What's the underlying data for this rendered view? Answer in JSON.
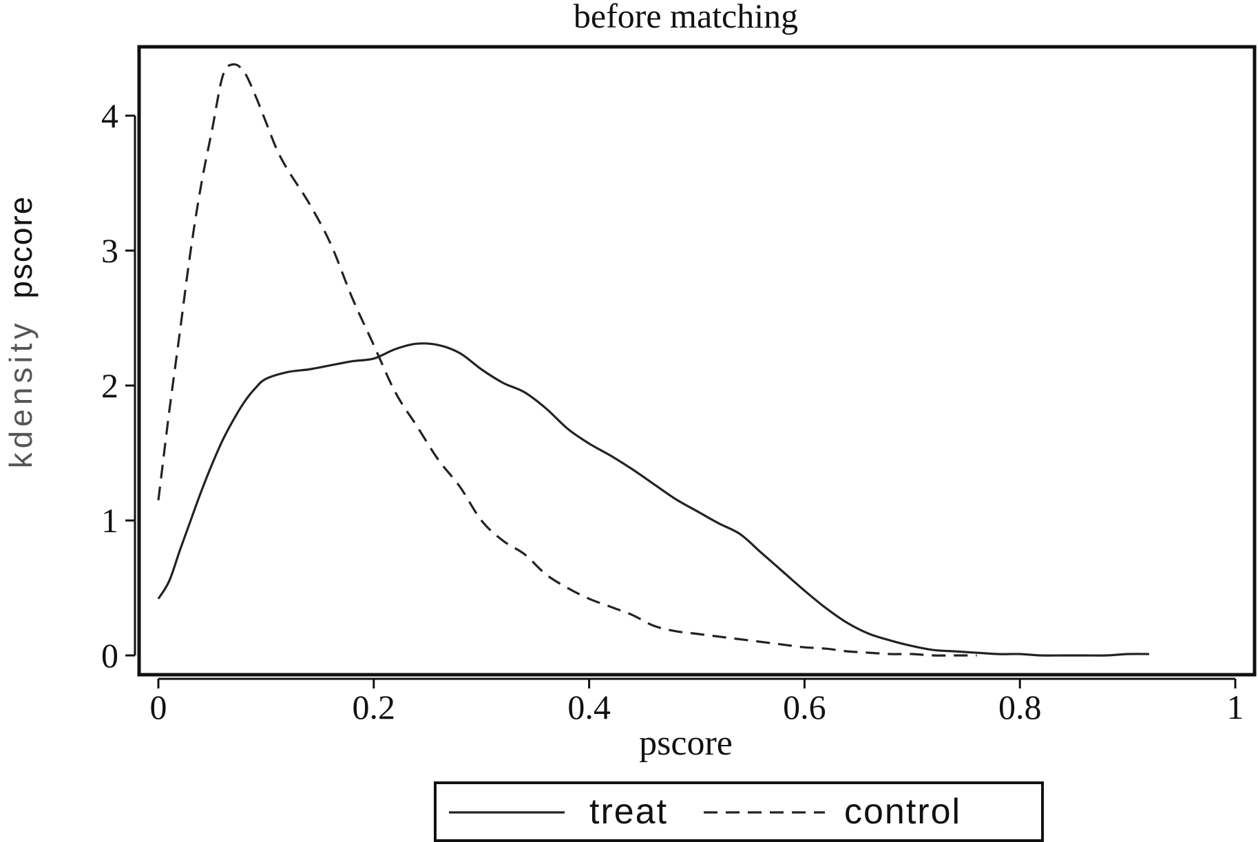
{
  "chart_data": {
    "type": "line",
    "title": "before matching",
    "xlabel": "pscore",
    "ylabel": [
      "kdensity",
      "pscore"
    ],
    "xlim": [
      0,
      1
    ],
    "ylim": [
      0,
      4.4
    ],
    "x_ticks": [
      "0",
      "0.2",
      "0.4",
      "0.6",
      "0.8",
      "1"
    ],
    "y_ticks": [
      "0",
      "1",
      "2",
      "3",
      "4"
    ],
    "grid": false,
    "legend_position": "bottom",
    "series": [
      {
        "name": "treat",
        "style": "solid",
        "color": "#222222",
        "x": [
          0.0,
          0.01,
          0.02,
          0.03,
          0.04,
          0.05,
          0.06,
          0.07,
          0.08,
          0.09,
          0.1,
          0.12,
          0.14,
          0.16,
          0.18,
          0.2,
          0.22,
          0.24,
          0.26,
          0.28,
          0.3,
          0.32,
          0.34,
          0.36,
          0.38,
          0.4,
          0.42,
          0.44,
          0.46,
          0.48,
          0.5,
          0.52,
          0.54,
          0.56,
          0.58,
          0.6,
          0.62,
          0.64,
          0.66,
          0.68,
          0.7,
          0.72,
          0.74,
          0.76,
          0.78,
          0.8,
          0.82,
          0.84,
          0.86,
          0.88,
          0.9,
          0.92
        ],
        "y": [
          0.42,
          0.55,
          0.78,
          1.0,
          1.22,
          1.42,
          1.6,
          1.75,
          1.88,
          1.98,
          2.05,
          2.1,
          2.12,
          2.15,
          2.18,
          2.2,
          2.27,
          2.31,
          2.3,
          2.24,
          2.12,
          2.02,
          1.95,
          1.83,
          1.68,
          1.57,
          1.48,
          1.38,
          1.27,
          1.16,
          1.07,
          0.98,
          0.9,
          0.76,
          0.62,
          0.48,
          0.35,
          0.24,
          0.16,
          0.11,
          0.07,
          0.04,
          0.03,
          0.02,
          0.01,
          0.01,
          0.0,
          0.0,
          0.0,
          0.0,
          0.01,
          0.01
        ]
      },
      {
        "name": "control",
        "style": "dashed",
        "color": "#222222",
        "x": [
          0.0,
          0.01,
          0.02,
          0.03,
          0.04,
          0.05,
          0.06,
          0.07,
          0.08,
          0.09,
          0.1,
          0.11,
          0.12,
          0.14,
          0.16,
          0.18,
          0.2,
          0.22,
          0.24,
          0.26,
          0.28,
          0.3,
          0.32,
          0.34,
          0.36,
          0.38,
          0.4,
          0.42,
          0.44,
          0.46,
          0.48,
          0.5,
          0.52,
          0.54,
          0.56,
          0.58,
          0.6,
          0.62,
          0.64,
          0.66,
          0.68,
          0.7,
          0.72,
          0.74,
          0.76
        ],
        "y": [
          1.15,
          1.8,
          2.4,
          3.0,
          3.5,
          3.9,
          4.3,
          4.38,
          4.32,
          4.15,
          3.95,
          3.75,
          3.6,
          3.35,
          3.05,
          2.65,
          2.3,
          1.95,
          1.7,
          1.45,
          1.25,
          1.0,
          0.85,
          0.75,
          0.6,
          0.5,
          0.42,
          0.36,
          0.3,
          0.22,
          0.18,
          0.16,
          0.14,
          0.12,
          0.1,
          0.08,
          0.06,
          0.05,
          0.03,
          0.02,
          0.01,
          0.01,
          0.0,
          0.0,
          0.0
        ]
      }
    ]
  }
}
